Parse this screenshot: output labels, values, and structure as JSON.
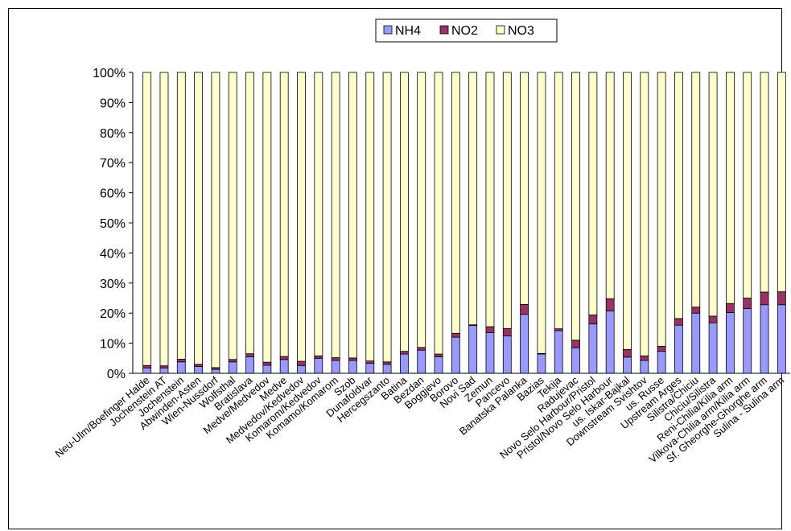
{
  "chart_data": {
    "type": "bar",
    "stacked": true,
    "percent": true,
    "legend_position": "top",
    "grid": false,
    "ylim": [
      0,
      100
    ],
    "y_ticks": [
      "0%",
      "10%",
      "20%",
      "30%",
      "40%",
      "50%",
      "60%",
      "70%",
      "80%",
      "90%",
      "100%"
    ],
    "categories": [
      "Neu-Ulm/Boefinger Halde",
      "Jochenstein AT",
      "Jochenstein",
      "Abwinden-Asten",
      "Wien-Nussdorf",
      "Wolfsthal",
      "Bratislava",
      "Medve/Medvedov",
      "Medve",
      "Medvedov/Kedvedov",
      "Komarom/Kedvedov",
      "Komamo/Komarom",
      "Szob",
      "Dunafoldvar",
      "Hercegszanto",
      "Batina",
      "Bezdan",
      "Boggjevo",
      "Borovo",
      "Novi Sad",
      "Zemun",
      "Pancevo",
      "Banatska Palanka",
      "Bazias",
      "Tekija",
      "Radujevac",
      "Novo Selo Harbour/Pristol",
      "Pristol/Novo Selo Harbour",
      "us. Iskar-Bajkal",
      "Downstream Svishtov",
      "us. Russe",
      "Upstream Arges",
      "Silistra/Chiciu",
      "Chiciu/Silistra",
      "Reni-Chilia/Kilia arm",
      "Vilkova-Chilia arm/Kilia arm",
      "Sf. Gheorghe-Ghorghe arm",
      "Sulina - Sulina arm"
    ],
    "series": [
      {
        "name": "NH4",
        "color": "#9999ff",
        "values": [
          1.8,
          1.8,
          3.8,
          2.3,
          1.3,
          3.8,
          5.5,
          2.7,
          4.6,
          2.6,
          5.0,
          4.3,
          4.3,
          3.3,
          3.0,
          6.4,
          7.7,
          5.5,
          12.0,
          15.9,
          13.5,
          12.4,
          19.6,
          6.4,
          14.2,
          8.5,
          16.4,
          20.7,
          5.4,
          4.3,
          7.3,
          16.0,
          20.0,
          16.8,
          20.2,
          21.5,
          22.8,
          22.8
        ]
      },
      {
        "name": "NO2",
        "color": "#993366",
        "values": [
          0.8,
          0.7,
          0.9,
          0.7,
          0.6,
          0.8,
          1.0,
          1.0,
          1.0,
          1.4,
          0.8,
          0.9,
          0.8,
          0.8,
          0.8,
          0.9,
          0.9,
          0.9,
          1.3,
          0.2,
          2.0,
          2.5,
          3.3,
          0.2,
          0.6,
          2.5,
          3.0,
          4.1,
          2.5,
          1.5,
          1.7,
          2.2,
          2.0,
          2.2,
          3.0,
          3.5,
          4.2,
          4.3
        ]
      },
      {
        "name": "NO3",
        "color": "#ffffcc",
        "values": [
          97.4,
          97.5,
          95.3,
          97.0,
          98.1,
          95.4,
          93.5,
          96.3,
          94.4,
          96.0,
          94.2,
          94.8,
          94.9,
          95.9,
          96.2,
          92.7,
          91.4,
          93.6,
          86.7,
          83.9,
          84.5,
          85.1,
          77.1,
          93.4,
          85.2,
          89.0,
          80.6,
          75.2,
          92.1,
          94.2,
          91.0,
          81.8,
          78.0,
          81.0,
          76.8,
          75.0,
          73.0,
          72.9
        ]
      }
    ]
  }
}
